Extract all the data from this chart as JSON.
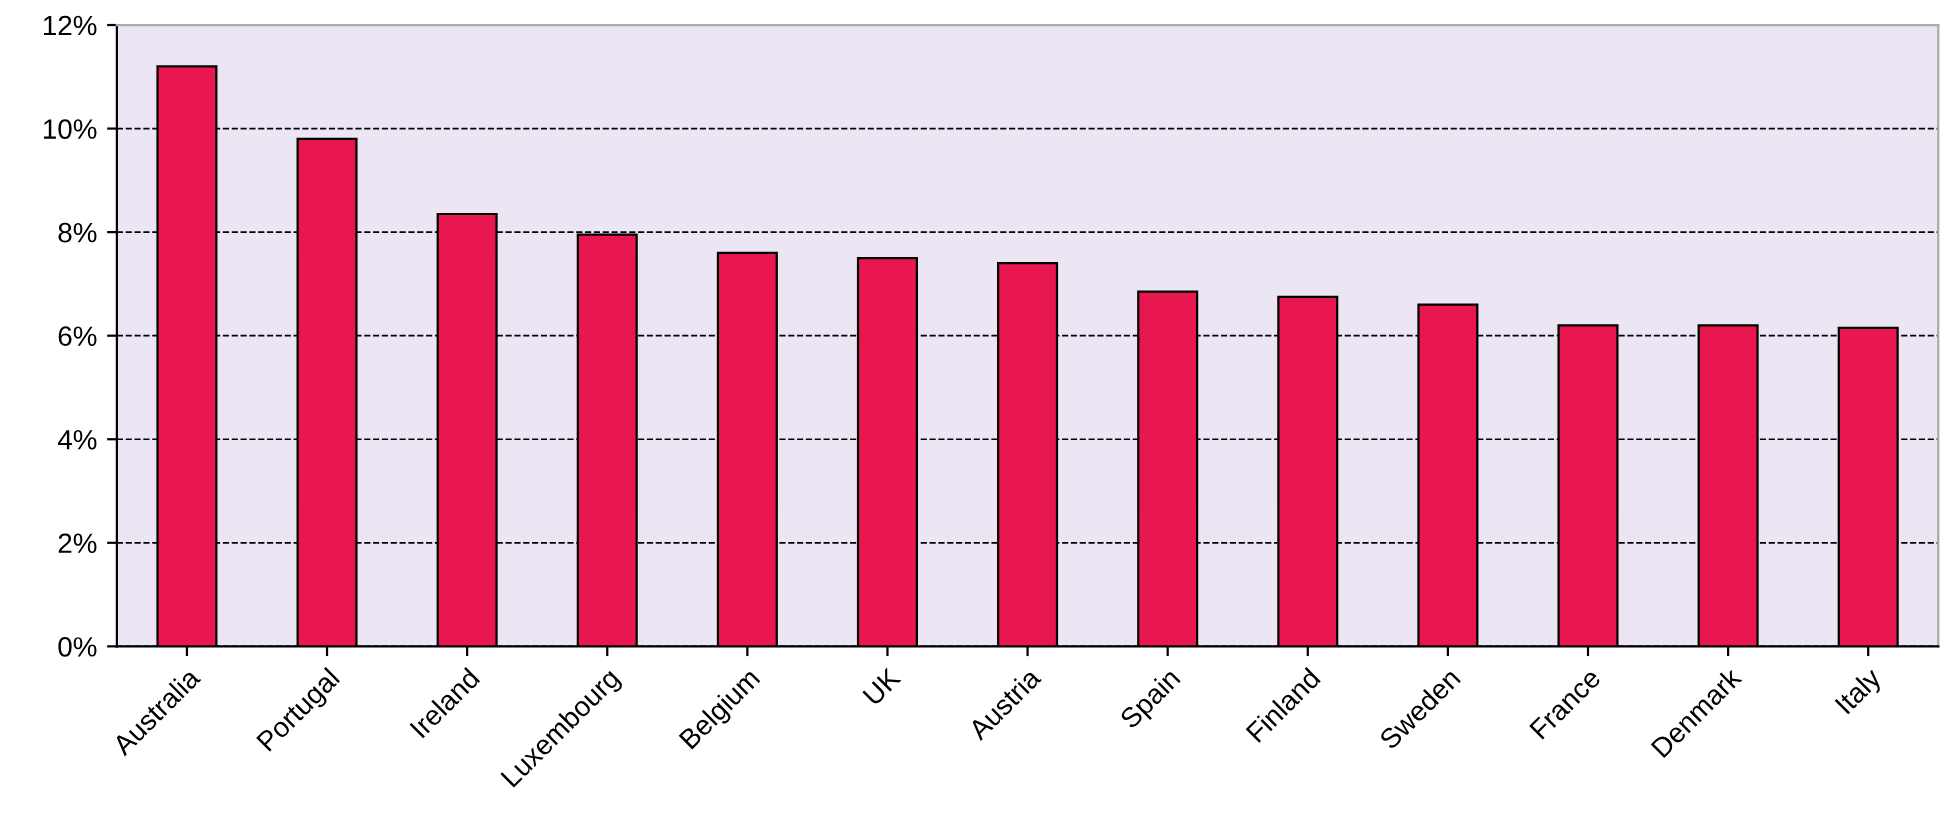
{
  "chart_data": {
    "type": "bar",
    "categories": [
      "Australia",
      "Portugal",
      "Ireland",
      "Luxembourg",
      "Belgium",
      "UK",
      "Austria",
      "Spain",
      "Finland",
      "Sweden",
      "France",
      "Denmark",
      "Italy"
    ],
    "values": [
      11.2,
      9.8,
      8.35,
      7.95,
      7.6,
      7.5,
      7.4,
      6.85,
      6.75,
      6.6,
      6.2,
      6.2,
      6.15
    ],
    "color": "#e8174f",
    "ylim": [
      0,
      12
    ],
    "yticks": [
      {
        "value": 0,
        "label": "0%"
      },
      {
        "value": 2,
        "label": "2%"
      },
      {
        "value": 4,
        "label": "4%"
      },
      {
        "value": 6,
        "label": "6%"
      },
      {
        "value": 8,
        "label": "8%"
      },
      {
        "value": 10,
        "label": "10%"
      },
      {
        "value": 12,
        "label": "12%"
      }
    ],
    "grid": "y",
    "line_style": "dashed"
  }
}
